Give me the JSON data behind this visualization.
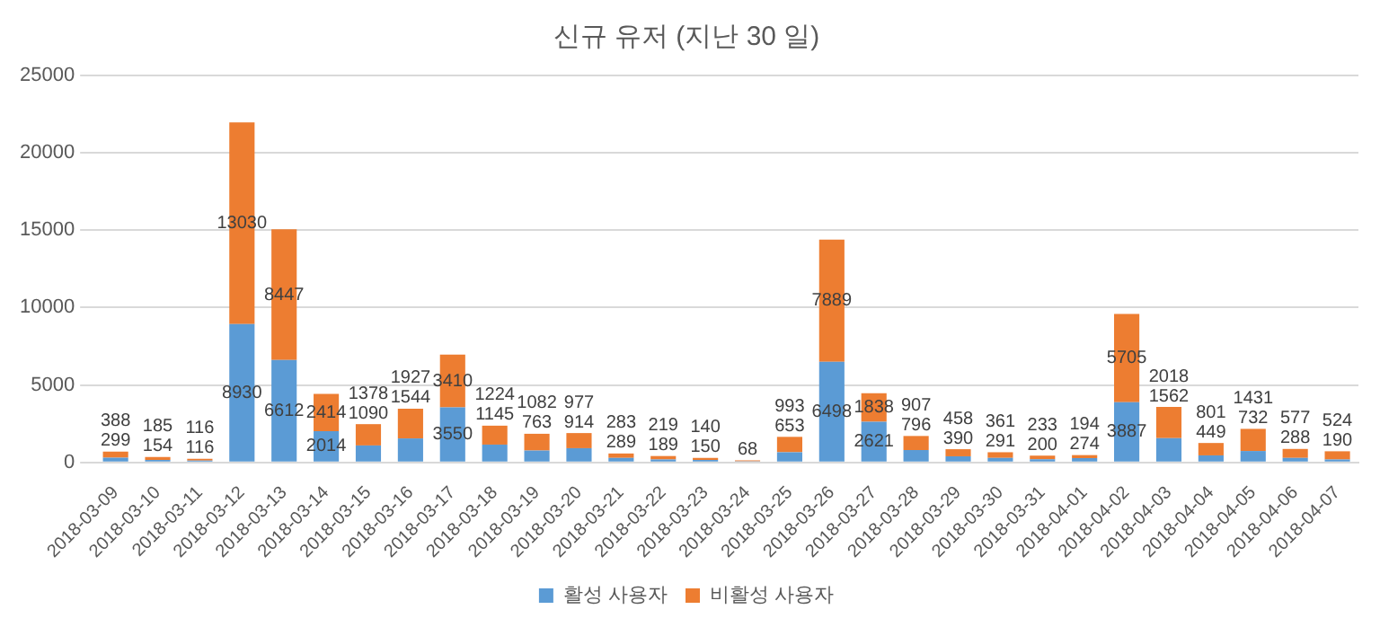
{
  "chart_data": {
    "type": "bar",
    "title": "신규 유저 (지난 30 일)",
    "stacked": true,
    "categories": [
      "2018-03-09",
      "2018-03-10",
      "2018-03-11",
      "2018-03-12",
      "2018-03-13",
      "2018-03-14",
      "2018-03-15",
      "2018-03-16",
      "2018-03-17",
      "2018-03-18",
      "2018-03-19",
      "2018-03-20",
      "2018-03-21",
      "2018-03-22",
      "2018-03-23",
      "2018-03-24",
      "2018-03-25",
      "2018-03-26",
      "2018-03-27",
      "2018-03-28",
      "2018-03-29",
      "2018-03-30",
      "2018-03-31",
      "2018-04-01",
      "2018-04-02",
      "2018-04-03",
      "2018-04-04",
      "2018-04-05",
      "2018-04-06",
      "2018-04-07"
    ],
    "series": [
      {
        "name": "활성 사용자",
        "color": "#5b9bd5",
        "values": [
          299,
          154,
          116,
          8930,
          6612,
          2014,
          1090,
          1544,
          3550,
          1145,
          763,
          914,
          289,
          189,
          150,
          68,
          653,
          6498,
          2621,
          796,
          390,
          291,
          200,
          274,
          3887,
          1562,
          449,
          732,
          288,
          190
        ],
        "value_labels": [
          "299",
          "154",
          "116",
          "8930",
          "6612",
          "2014",
          "1090",
          "1544",
          "3550",
          "1145",
          "763",
          "914",
          "289",
          "189",
          "150",
          "68",
          "653",
          "6498",
          "2621",
          "796",
          "390",
          "291",
          "200",
          "274",
          "3887",
          "1562",
          "449",
          "732",
          "288",
          "190"
        ]
      },
      {
        "name": "비활성 사용자",
        "color": "#ed7d31",
        "values": [
          388,
          185,
          116,
          13030,
          8447,
          2414,
          1378,
          1927,
          3410,
          1224,
          1082,
          977,
          283,
          219,
          140,
          60,
          993,
          7889,
          1838,
          907,
          458,
          361,
          233,
          194,
          5705,
          2018,
          801,
          1431,
          577,
          524
        ],
        "value_labels": [
          "388",
          "185",
          "116",
          "13030",
          "8447",
          "2414",
          "1378",
          "1927",
          "3410",
          "1224",
          "1082",
          "977",
          "283",
          "219",
          "140",
          null,
          "993",
          "7889",
          "1838",
          "907",
          "458",
          "361",
          "233",
          "194",
          "5705",
          "2018",
          "801",
          "1431",
          "577",
          "524"
        ]
      }
    ],
    "ylim": [
      0,
      25000
    ],
    "yticks": [
      0,
      5000,
      10000,
      15000,
      20000,
      25000
    ],
    "grid": "y",
    "legend": "bottom"
  }
}
